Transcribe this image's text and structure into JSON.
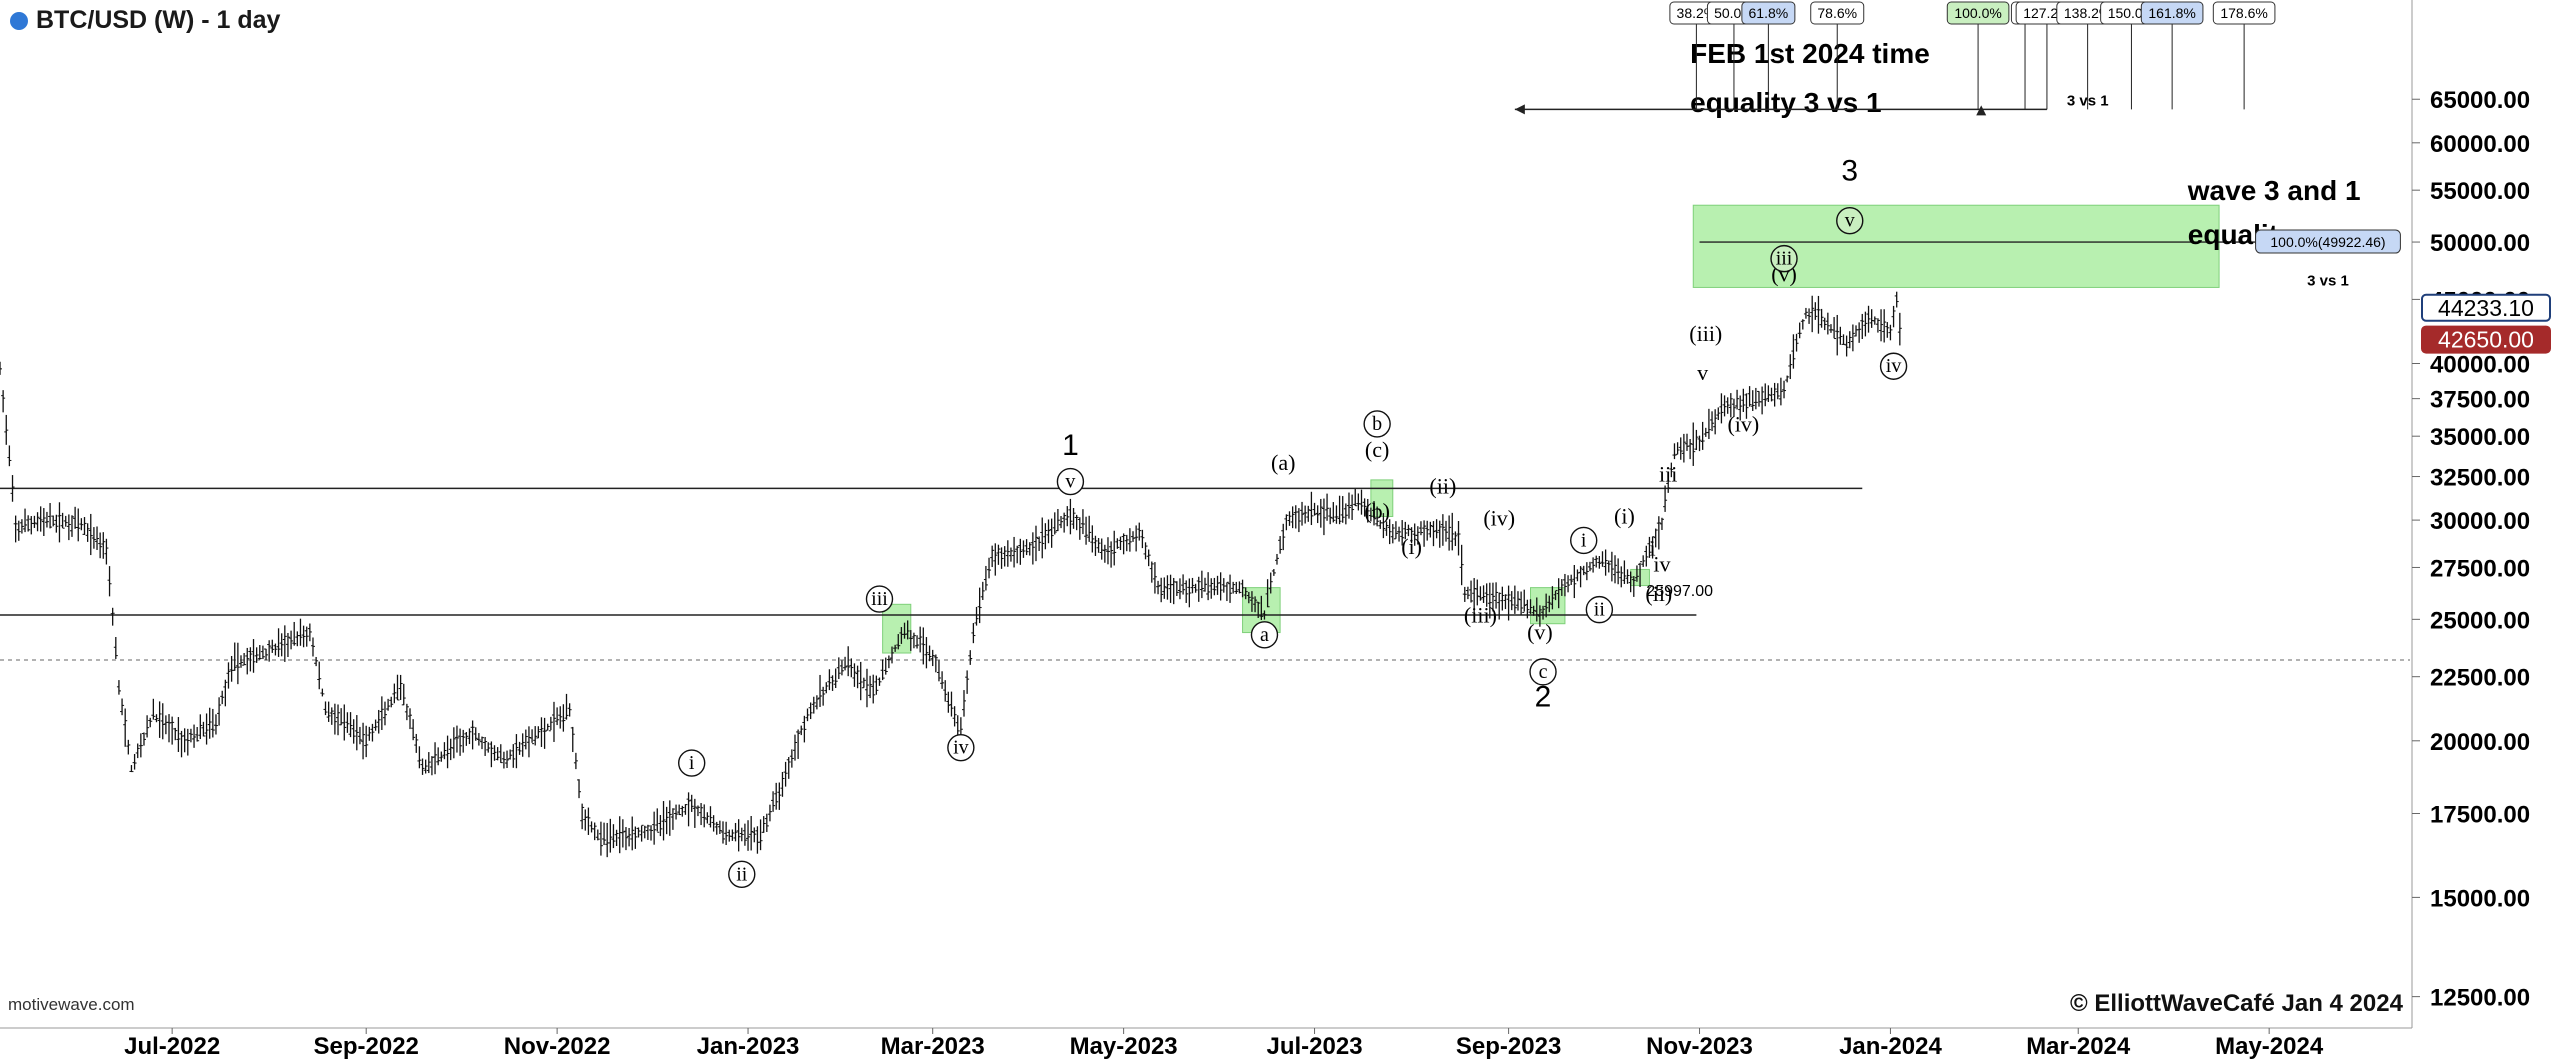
{
  "header": {
    "title": "BTC/USD (W) - 1 day",
    "status_color": "#2f78d6"
  },
  "footer": {
    "watermark": "motivewave.com",
    "copyright": "© ElliottWaveCafé Jan 4 2024"
  },
  "chart_data": {
    "type": "ohlc",
    "x_axis": {
      "type": "date",
      "tick_labels": [
        "Jul-2022",
        "Sep-2022",
        "Nov-2022",
        "Jan-2023",
        "Mar-2023",
        "May-2023",
        "Jul-2023",
        "Sep-2023",
        "Nov-2023",
        "Jan-2024",
        "Mar-2024",
        "May-2024"
      ],
      "tick_dates": [
        "2022-07-01",
        "2022-09-01",
        "2022-11-01",
        "2023-01-01",
        "2023-03-01",
        "2023-05-01",
        "2023-07-01",
        "2023-09-01",
        "2023-11-01",
        "2024-01-01",
        "2024-03-01",
        "2024-05-01"
      ],
      "range": [
        "2022-05-07",
        "2024-06-15"
      ]
    },
    "y_axis": {
      "scale": "log",
      "side": "right",
      "range": [
        11800,
        78000
      ],
      "tick_labels": [
        "12500.00",
        "15000.00",
        "17500.00",
        "20000.00",
        "22500.00",
        "25000.00",
        "27500.00",
        "30000.00",
        "32500.00",
        "35000.00",
        "37500.00",
        "40000.00",
        "45000.00",
        "50000.00",
        "55000.00",
        "60000.00",
        "65000.00"
      ],
      "tick_values": [
        12500,
        15000,
        17500,
        20000,
        22500,
        25000,
        27500,
        30000,
        32500,
        35000,
        37500,
        40000,
        45000,
        50000,
        55000,
        60000,
        65000
      ]
    },
    "price_path": [
      [
        "2022-05-07",
        39500
      ],
      [
        "2022-05-12",
        29500
      ],
      [
        "2022-05-20",
        30000
      ],
      [
        "2022-06-01",
        29800
      ],
      [
        "2022-06-10",
        28500
      ],
      [
        "2022-06-14",
        22000
      ],
      [
        "2022-06-18",
        19000
      ],
      [
        "2022-06-25",
        21000
      ],
      [
        "2022-07-05",
        20000
      ],
      [
        "2022-07-15",
        20700
      ],
      [
        "2022-07-20",
        23000
      ],
      [
        "2022-07-30",
        23500
      ],
      [
        "2022-08-14",
        24400
      ],
      [
        "2022-08-19",
        21200
      ],
      [
        "2022-09-01",
        20000
      ],
      [
        "2022-09-12",
        22000
      ],
      [
        "2022-09-19",
        19000
      ],
      [
        "2022-10-05",
        20300
      ],
      [
        "2022-10-15",
        19300
      ],
      [
        "2022-10-30",
        20600
      ],
      [
        "2022-11-05",
        21200
      ],
      [
        "2022-11-09",
        17500
      ],
      [
        "2022-11-15",
        16700
      ],
      [
        "2022-12-01",
        17000
      ],
      [
        "2022-12-14",
        17800
      ],
      [
        "2022-12-25",
        16800
      ],
      [
        "2023-01-05",
        16800
      ],
      [
        "2023-01-12",
        18500
      ],
      [
        "2023-01-20",
        21000
      ],
      [
        "2023-02-01",
        23000
      ],
      [
        "2023-02-10",
        21800
      ],
      [
        "2023-02-20",
        24500
      ],
      [
        "2023-03-01",
        23400
      ],
      [
        "2023-03-10",
        20200
      ],
      [
        "2023-03-14",
        24500
      ],
      [
        "2023-03-20",
        28000
      ],
      [
        "2023-04-01",
        28500
      ],
      [
        "2023-04-14",
        30300
      ],
      [
        "2023-04-25",
        28300
      ],
      [
        "2023-05-06",
        29300
      ],
      [
        "2023-05-12",
        26500
      ],
      [
        "2023-05-25",
        26500
      ],
      [
        "2023-06-08",
        26500
      ],
      [
        "2023-06-15",
        25200
      ],
      [
        "2023-06-22",
        30000
      ],
      [
        "2023-07-01",
        30500
      ],
      [
        "2023-07-10",
        30300
      ],
      [
        "2023-07-14",
        31200
      ],
      [
        "2023-07-25",
        29300
      ],
      [
        "2023-08-10",
        29500
      ],
      [
        "2023-08-16",
        29100
      ],
      [
        "2023-08-18",
        26200
      ],
      [
        "2023-09-01",
        25900
      ],
      [
        "2023-09-11",
        25300
      ],
      [
        "2023-09-20",
        26800
      ],
      [
        "2023-10-01",
        27900
      ],
      [
        "2023-10-11",
        26700
      ],
      [
        "2023-10-16",
        28500
      ],
      [
        "2023-10-20",
        29800
      ],
      [
        "2023-10-24",
        34000
      ],
      [
        "2023-11-01",
        34700
      ],
      [
        "2023-11-09",
        37000
      ],
      [
        "2023-11-20",
        37500
      ],
      [
        "2023-11-28",
        38000
      ],
      [
        "2023-12-05",
        44000
      ],
      [
        "2023-12-08",
        43800
      ],
      [
        "2023-12-18",
        41500
      ],
      [
        "2023-12-25",
        43500
      ],
      [
        "2024-01-01",
        42500
      ],
      [
        "2024-01-03",
        45000
      ],
      [
        "2024-01-04",
        42650
      ]
    ],
    "horizontal_lines": [
      {
        "name": "resistance-upper",
        "value": 31800,
        "from": "2022-05-07",
        "to": "2023-12-23",
        "style": "solid"
      },
      {
        "name": "support-lower",
        "value": 25200,
        "from": "2022-05-07",
        "to": "2023-10-31",
        "style": "solid"
      },
      {
        "name": "reference-dashed",
        "value": 23200,
        "from": "2022-05-07",
        "to": "2024-06-15",
        "style": "dashed"
      },
      {
        "name": "target-line",
        "value": 50000,
        "from": "2023-11-01",
        "to": "2024-05-01",
        "style": "solid"
      }
    ],
    "zones": [
      {
        "name": "wave-3-target-zone",
        "from": "2023-10-30",
        "to": "2024-04-15",
        "low": 46000,
        "high": 53500,
        "color": "#b8f0b0"
      },
      {
        "name": "zone-feb-2023",
        "from": "2023-02-13",
        "to": "2023-02-22",
        "low": 23500,
        "high": 25700,
        "color": "#b8f0b0"
      },
      {
        "name": "zone-jun-2023",
        "from": "2023-06-08",
        "to": "2023-06-20",
        "low": 24400,
        "high": 26500,
        "color": "#b8f0b0"
      },
      {
        "name": "zone-jul-2023",
        "from": "2023-07-19",
        "to": "2023-07-26",
        "low": 30200,
        "high": 32300,
        "color": "#b8f0b0"
      },
      {
        "name": "zone-sep-2023",
        "from": "2023-09-08",
        "to": "2023-09-19",
        "low": 24800,
        "high": 26500,
        "color": "#b8f0b0"
      },
      {
        "name": "zone-oct-2023",
        "from": "2023-10-10",
        "to": "2023-10-16",
        "low": 26600,
        "high": 27400,
        "color": "#b8f0b0"
      }
    ],
    "wave_labels": [
      {
        "text": "1",
        "date": "2023-04-14",
        "price": 33800,
        "style": "large"
      },
      {
        "text": "v",
        "date": "2023-04-14",
        "price": 32200,
        "style": "circle"
      },
      {
        "text": "i",
        "date": "2022-12-14",
        "price": 19200,
        "style": "circle"
      },
      {
        "text": "ii",
        "date": "2022-12-30",
        "price": 15650,
        "style": "circle"
      },
      {
        "text": "iii",
        "date": "2023-02-12",
        "price": 25950,
        "style": "circle"
      },
      {
        "text": "iv",
        "date": "2023-03-10",
        "price": 19750,
        "style": "circle"
      },
      {
        "text": "a",
        "date": "2023-06-15",
        "price": 24300,
        "style": "circle"
      },
      {
        "text": "(a)",
        "date": "2023-06-21",
        "price": 32900,
        "style": "paren"
      },
      {
        "text": "b",
        "date": "2023-07-21",
        "price": 35800,
        "style": "circle"
      },
      {
        "text": "(c)",
        "date": "2023-07-21",
        "price": 33700,
        "style": "paren"
      },
      {
        "text": "(b)",
        "date": "2023-07-21",
        "price": 30100,
        "style": "paren"
      },
      {
        "text": "(ii)",
        "date": "2023-08-11",
        "price": 31500,
        "style": "paren"
      },
      {
        "text": "(i)",
        "date": "2023-08-01",
        "price": 28200,
        "style": "paren"
      },
      {
        "text": "(iv)",
        "date": "2023-08-29",
        "price": 29700,
        "style": "paren"
      },
      {
        "text": "(iii)",
        "date": "2023-08-23",
        "price": 24850,
        "style": "paren"
      },
      {
        "text": "(v)",
        "date": "2023-09-11",
        "price": 24100,
        "style": "paren"
      },
      {
        "text": "c",
        "date": "2023-09-12",
        "price": 22700,
        "style": "circle"
      },
      {
        "text": "2",
        "date": "2023-09-12",
        "price": 21300,
        "style": "large"
      },
      {
        "text": "i",
        "date": "2023-09-25",
        "price": 28900,
        "style": "circle"
      },
      {
        "text": "ii",
        "date": "2023-09-30",
        "price": 25450,
        "style": "circle"
      },
      {
        "text": "(i)",
        "date": "2023-10-08",
        "price": 29800,
        "style": "paren"
      },
      {
        "text": "(ii)",
        "date": "2023-10-19",
        "price": 25850,
        "style": "paren"
      },
      {
        "text": "i",
        "date": "2023-10-17",
        "price": 28100,
        "style": "plain"
      },
      {
        "text": "iv",
        "date": "2023-10-20",
        "price": 27300,
        "style": "plain"
      },
      {
        "text": "iii",
        "date": "2023-10-22",
        "price": 32200,
        "style": "plain"
      },
      {
        "text": "v",
        "date": "2023-11-02",
        "price": 38800,
        "style": "plain"
      },
      {
        "text": "(iii)",
        "date": "2023-11-03",
        "price": 41700,
        "style": "paren"
      },
      {
        "text": "(iv)",
        "date": "2023-11-15",
        "price": 35300,
        "style": "paren"
      },
      {
        "text": "(v)",
        "date": "2023-11-28",
        "price": 46500,
        "style": "paren"
      },
      {
        "text": "iii",
        "date": "2023-11-28",
        "price": 48500,
        "style": "circle"
      },
      {
        "text": "v",
        "date": "2023-12-19",
        "price": 52000,
        "style": "circle"
      },
      {
        "text": "3",
        "date": "2023-12-19",
        "price": 56000,
        "style": "large"
      },
      {
        "text": "iv",
        "date": "2024-01-02",
        "price": 39800,
        "style": "circle"
      }
    ],
    "price_annotation": {
      "text": "25997.00",
      "date": "2023-10-15",
      "price": 26100
    },
    "text_annotations": [
      {
        "text": "FEB 1st 2024 time",
        "date": "2023-10-29",
        "price": 69500
      },
      {
        "text": "equality 3 vs 1",
        "date": "2023-10-29",
        "price": 63500
      },
      {
        "text": "wave 3 and 1",
        "date": "2024-04-05",
        "price": 54000
      },
      {
        "text": "equality",
        "date": "2024-04-05",
        "price": 49800
      }
    ],
    "fib_time": {
      "baseline_from": "2023-09-03",
      "baseline_to": "2024-02-20",
      "baseline_price": 63800,
      "marker_date": "2024-01-30",
      "label": "3 vs 1",
      "boxes": [
        {
          "text": "38.2%",
          "date": "2023-10-31",
          "highlight": ""
        },
        {
          "text": "50.0%",
          "date": "2023-11-12",
          "highlight": ""
        },
        {
          "text": "61.8%",
          "date": "2023-11-23",
          "highlight": "#c6d8f5"
        },
        {
          "text": "78.6%",
          "date": "2023-12-15",
          "highlight": ""
        },
        {
          "text": "100.0%",
          "date": "2024-01-29",
          "highlight": "#c9efc0"
        },
        {
          "text": "11",
          "date": "2024-02-13",
          "highlight": ""
        },
        {
          "text": "127.2%",
          "date": "2024-02-20",
          "highlight": ""
        },
        {
          "text": "138.2%",
          "date": "2024-03-04",
          "highlight": ""
        },
        {
          "text": "150.0%",
          "date": "2024-03-18",
          "highlight": ""
        },
        {
          "text": "161.8%",
          "date": "2024-03-31",
          "highlight": "#c6d8f5"
        },
        {
          "text": "178.6%",
          "date": "2024-04-23",
          "highlight": ""
        }
      ]
    },
    "fib_price_labels": [
      {
        "text": "100.0%(49922.46)",
        "price": 50000,
        "color": "#c6d8f5"
      },
      {
        "text": "3 vs 1",
        "price": 47000,
        "color": ""
      }
    ],
    "price_tags": [
      {
        "text": "44233.10",
        "value": 44233.1,
        "bg": "#ffffff",
        "fg": "#000000",
        "border": "#1f3f7a"
      },
      {
        "text": "42650.00",
        "value": 42650.0,
        "bg": "#a52a2a",
        "fg": "#ffffff",
        "border": "#a52a2a"
      }
    ]
  }
}
